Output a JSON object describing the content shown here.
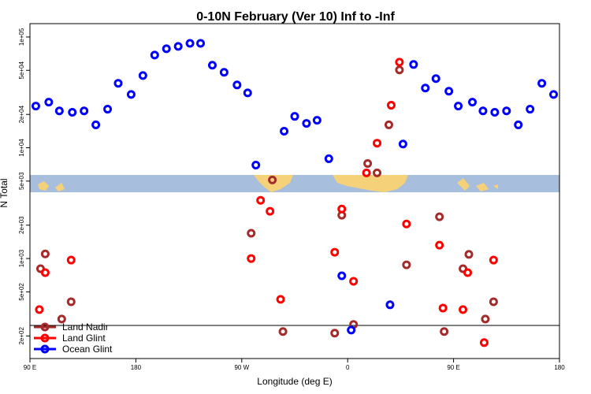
{
  "chart_data": {
    "type": "scatter",
    "title": "0-10N February (Ver 10)   Inf to -Inf",
    "x_label": "Longitude (deg E)",
    "y_label": "N Total",
    "log_y": true,
    "legend": "bottom-left",
    "xlim": [
      90,
      540
    ],
    "ylim": [
      125,
      132000
    ],
    "xticks": [
      {
        "value": 90,
        "label": "90 E"
      },
      {
        "value": 180,
        "label": "180"
      },
      {
        "value": 270,
        "label": "90 W"
      },
      {
        "value": 360,
        "label": "0"
      },
      {
        "value": 450,
        "label": "90 E"
      },
      {
        "value": 540,
        "label": "180"
      }
    ],
    "yticks": [
      {
        "value": 200,
        "label": "2e+02"
      },
      {
        "value": 500,
        "label": "5e+02"
      },
      {
        "value": 1000,
        "label": "1e+03"
      },
      {
        "value": 2000,
        "label": "2e+03"
      },
      {
        "value": 5000,
        "label": "5e+03"
      },
      {
        "value": 10000,
        "label": "1e+04"
      },
      {
        "value": 20000,
        "label": "2e+04"
      },
      {
        "value": 50000,
        "label": "5e+04"
      },
      {
        "value": 100000,
        "label": "1e+05"
      }
    ],
    "series": [
      {
        "name": "Land Nadir",
        "color": "#a52a2a",
        "x": [
          99,
          103,
          125,
          117,
          278,
          296,
          305,
          349,
          355,
          365,
          377,
          385,
          395,
          404,
          410,
          438,
          442,
          458,
          463,
          477,
          484
        ],
        "values": [
          809,
          1100,
          407,
          284,
          1690,
          5120,
          219,
          212,
          2460,
          254,
          7210,
          5930,
          16100,
          50400,
          877,
          2380,
          219,
          809,
          1090,
          284,
          407
        ]
      },
      {
        "name": "Land Glint",
        "color": "#ff0000",
        "x": [
          98,
          103,
          125,
          286,
          294,
          278,
          303,
          349,
          355,
          365,
          376,
          385,
          397,
          404,
          410,
          438,
          441,
          458,
          462,
          476,
          484
        ],
        "values": [
          346,
          745,
          968,
          3350,
          2670,
          1000,
          428,
          1140,
          2800,
          623,
          5930,
          11000,
          24200,
          59300,
          2050,
          1320,
          357,
          346,
          745,
          174,
          968
        ]
      },
      {
        "name": "Ocean Glint",
        "color": "#0000ff",
        "x": [
          95,
          106,
          115,
          126,
          136,
          146,
          156,
          165,
          176,
          186,
          196,
          206,
          216,
          226,
          235,
          245,
          255,
          266,
          275,
          282,
          306,
          315,
          325,
          334,
          344,
          355,
          363,
          396,
          407,
          416,
          426,
          435,
          446,
          454,
          466,
          475,
          485,
          495,
          505,
          515,
          525,
          535
        ],
        "values": [
          23800,
          25800,
          21500,
          20900,
          21500,
          16100,
          22300,
          38200,
          30300,
          44900,
          68700,
          78300,
          82200,
          87700,
          87700,
          55600,
          48000,
          36900,
          31300,
          6980,
          14100,
          19200,
          16600,
          17700,
          7960,
          698,
          226,
          382,
          10800,
          56500,
          34600,
          42100,
          32400,
          23800,
          25800,
          21500,
          20900,
          21500,
          16100,
          22300,
          38200,
          30300
        ]
      }
    ]
  }
}
